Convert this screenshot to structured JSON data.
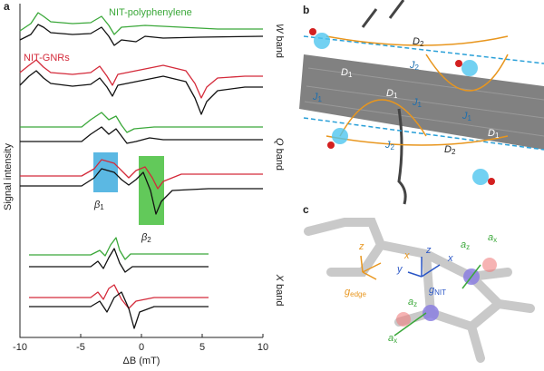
{
  "chart_data": {
    "type": "line",
    "panel_label": "a",
    "xlabel": "ΔB (mT)",
    "ylabel": "Signal intensity",
    "xlim": [
      -10,
      10
    ],
    "xticks": [
      -10,
      -5,
      0,
      5,
      10
    ],
    "annotations": [
      "NIT-polyphenylene",
      "NIT-GNRs"
    ],
    "band_labels": [
      {
        "letter": "W",
        "word": "band"
      },
      {
        "letter": "Q",
        "word": "band"
      },
      {
        "letter": "X",
        "word": "band"
      }
    ],
    "regions": [
      {
        "base": "β",
        "sub": "1"
      },
      {
        "base": "β",
        "sub": "2"
      }
    ]
  },
  "panel_b": {
    "label": "b",
    "couplings": [
      {
        "base": "D",
        "sub": "2"
      },
      {
        "base": "J",
        "sub": "2"
      },
      {
        "base": "D",
        "sub": "1"
      },
      {
        "base": "J",
        "sub": "1"
      },
      {
        "base": "D",
        "sub": "1"
      },
      {
        "base": "J",
        "sub": "1"
      },
      {
        "base": "J",
        "sub": "1"
      },
      {
        "base": "D",
        "sub": "1"
      },
      {
        "base": "J",
        "sub": "2"
      },
      {
        "base": "D",
        "sub": "2"
      }
    ]
  },
  "panel_c": {
    "label": "c",
    "labels": [
      {
        "base": "z",
        "sub": ""
      },
      {
        "base": "x",
        "sub": ""
      },
      {
        "base": "z",
        "sub": ""
      },
      {
        "base": "x",
        "sub": ""
      },
      {
        "base": "y",
        "sub": ""
      },
      {
        "base": "g",
        "sub": "edge"
      },
      {
        "base": "g",
        "sub": "NIT"
      },
      {
        "base": "a",
        "sub": "z"
      },
      {
        "base": "a",
        "sub": "x"
      },
      {
        "base": "a",
        "sub": "z"
      },
      {
        "base": "a",
        "sub": "x"
      }
    ]
  }
}
